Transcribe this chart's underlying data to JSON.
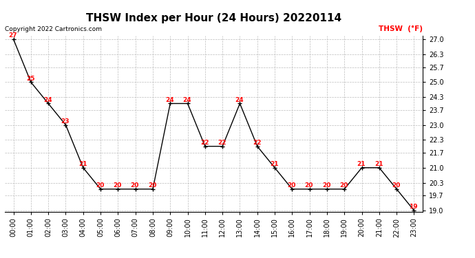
{
  "title": "THSW Index per Hour (24 Hours) 20220114",
  "copyright": "Copyright 2022 Cartronics.com",
  "legend_label": "THSW  (°F)",
  "hours": [
    0,
    1,
    2,
    3,
    4,
    5,
    6,
    7,
    8,
    9,
    10,
    11,
    12,
    13,
    14,
    15,
    16,
    17,
    18,
    19,
    20,
    21,
    22,
    23
  ],
  "hour_labels": [
    "00:00",
    "01:00",
    "02:00",
    "03:00",
    "04:00",
    "05:00",
    "06:00",
    "07:00",
    "08:00",
    "09:00",
    "10:00",
    "11:00",
    "12:00",
    "13:00",
    "14:00",
    "15:00",
    "16:00",
    "17:00",
    "18:00",
    "19:00",
    "20:00",
    "21:00",
    "22:00",
    "23:00"
  ],
  "values": [
    27.0,
    25.0,
    24.0,
    23.0,
    21.0,
    20.0,
    20.0,
    20.0,
    20.0,
    24.0,
    24.0,
    22.0,
    22.0,
    24.0,
    22.0,
    21.0,
    20.0,
    20.0,
    20.0,
    20.0,
    21.0,
    21.0,
    20.0,
    19.0
  ],
  "data_labels": [
    "27",
    "25",
    "24",
    "23",
    "21",
    "20",
    "20",
    "20",
    "20",
    "24",
    "24",
    "22",
    "22",
    "24",
    "22",
    "21",
    "20",
    "20",
    "20",
    "20",
    "21",
    "21",
    "20",
    "19"
  ],
  "line_color": "#000000",
  "marker_color": "#000000",
  "label_color": "#ff0000",
  "background_color": "#ffffff",
  "grid_color": "#bbbbbb",
  "ylim_min": 19.0,
  "ylim_max": 27.0,
  "ytick_values": [
    19.0,
    19.7,
    20.3,
    21.0,
    21.7,
    22.3,
    23.0,
    23.7,
    24.3,
    25.0,
    25.7,
    26.3,
    27.0
  ],
  "ytick_labels": [
    "19.0",
    "19.7",
    "20.3",
    "21.0",
    "21.7",
    "22.3",
    "23.0",
    "23.7",
    "24.3",
    "25.0",
    "25.7",
    "26.3",
    "27.0"
  ],
  "title_fontsize": 11,
  "label_fontsize": 6.5,
  "tick_fontsize": 7,
  "copyright_fontsize": 6.5,
  "legend_fontsize": 7.5
}
